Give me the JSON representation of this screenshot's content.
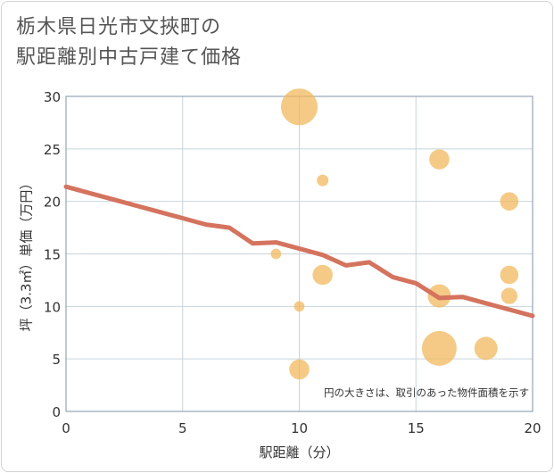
{
  "title": {
    "line1": "栃木県日光市文挾町の",
    "line2": "駅距離別中古戸建て価格"
  },
  "colors": {
    "line": "#d4735e",
    "bubble": "#f2b85e",
    "grid": "#c8d4dc",
    "plot_border": "#7f93a8"
  },
  "chart_data": {
    "type": "scatter",
    "title": "栃木県日光市文挾町の駅距離別中古戸建て価格",
    "xlabel": "駅距離（分）",
    "ylabel": "坪（3.3㎡）単価（万円）",
    "xlim": [
      0,
      20
    ],
    "ylim": [
      0,
      30
    ],
    "xticks": [
      0,
      5,
      10,
      15,
      20
    ],
    "yticks": [
      0,
      5,
      10,
      15,
      20,
      25,
      30
    ],
    "grid": true,
    "note": "円の大きさは、取引のあった物件面積を示す",
    "trend_line": {
      "name": "trend",
      "x": [
        0,
        1,
        2,
        3,
        4,
        5,
        6,
        7,
        8,
        9,
        10,
        11,
        12,
        13,
        14,
        15,
        16,
        17,
        18,
        19,
        20
      ],
      "y": [
        21.4,
        20.8,
        20.2,
        19.6,
        19.0,
        18.4,
        17.8,
        17.5,
        16.0,
        16.1,
        15.5,
        14.9,
        13.9,
        14.2,
        12.8,
        12.2,
        10.8,
        10.9,
        10.3,
        9.7,
        9.1
      ]
    },
    "bubbles": [
      {
        "x": 10,
        "y": 29,
        "size": 10
      },
      {
        "x": 16,
        "y": 24,
        "size": 3
      },
      {
        "x": 11,
        "y": 22,
        "size": 1
      },
      {
        "x": 19,
        "y": 20,
        "size": 2.5
      },
      {
        "x": 9,
        "y": 15,
        "size": 0.8
      },
      {
        "x": 11,
        "y": 13,
        "size": 3
      },
      {
        "x": 19,
        "y": 13,
        "size": 2.5
      },
      {
        "x": 16,
        "y": 11,
        "size": 4
      },
      {
        "x": 19,
        "y": 11,
        "size": 2
      },
      {
        "x": 10,
        "y": 10,
        "size": 0.8
      },
      {
        "x": 16,
        "y": 6,
        "size": 9
      },
      {
        "x": 18,
        "y": 6,
        "size": 4
      },
      {
        "x": 10,
        "y": 4,
        "size": 3
      }
    ]
  }
}
